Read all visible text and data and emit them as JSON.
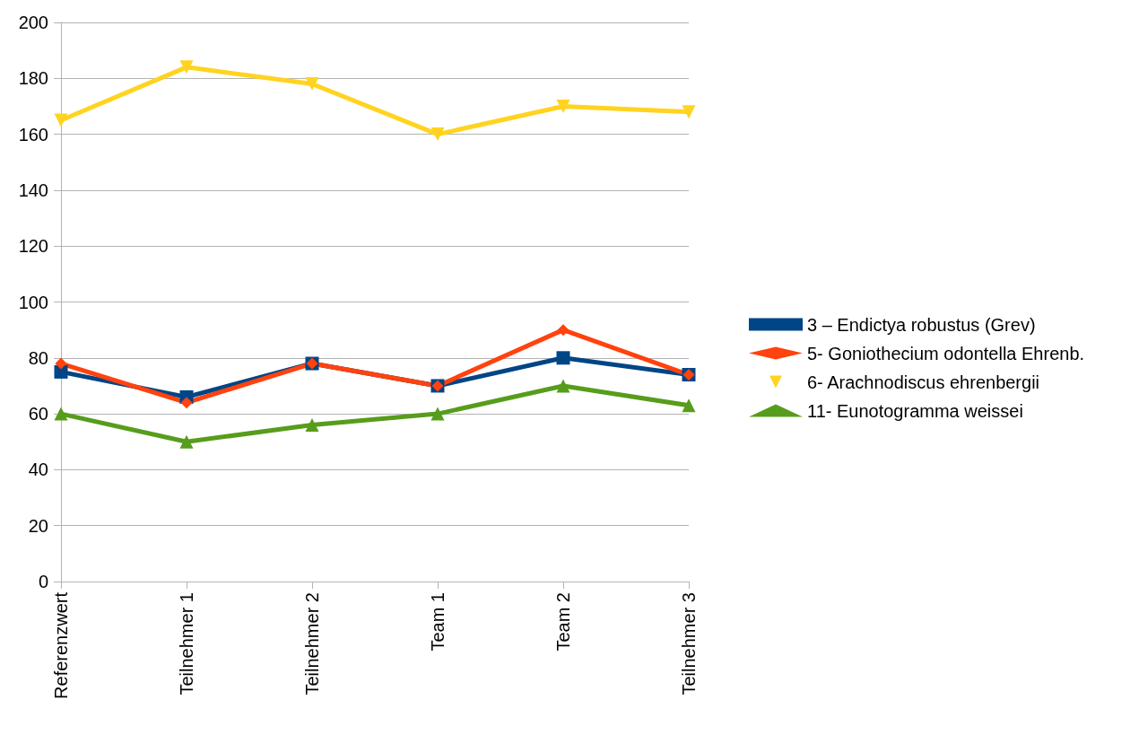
{
  "chart_data": {
    "type": "line",
    "categories": [
      "Referenzwert",
      "Teilnehmer 1",
      "Teilnehmer 2",
      "Team 1",
      "Team 2",
      "Teilnehmer 3"
    ],
    "series": [
      {
        "name": "3 – Endictya robustus (Grev)",
        "color": "#004586",
        "marker": "square",
        "values": [
          75,
          66,
          78,
          70,
          80,
          74
        ]
      },
      {
        "name": "5- Goniothecium odontella Ehrenb.",
        "color": "#ff420e",
        "marker": "diamond",
        "values": [
          78,
          64,
          78,
          70,
          90,
          74
        ]
      },
      {
        "name": "6- Arachnodiscus ehrenbergii",
        "color": "#ffd320",
        "marker": "triangle-down",
        "values": [
          165,
          184,
          178,
          160,
          170,
          168
        ]
      },
      {
        "name": "11- Eunotogramma weissei",
        "color": "#579d1c",
        "marker": "triangle",
        "values": [
          60,
          50,
          56,
          60,
          70,
          63
        ]
      }
    ],
    "ylim": [
      0,
      200
    ],
    "yticks": [
      0,
      20,
      40,
      60,
      80,
      100,
      120,
      140,
      160,
      180,
      200
    ],
    "grid": "y",
    "legend": "right",
    "line_style": "solid"
  }
}
